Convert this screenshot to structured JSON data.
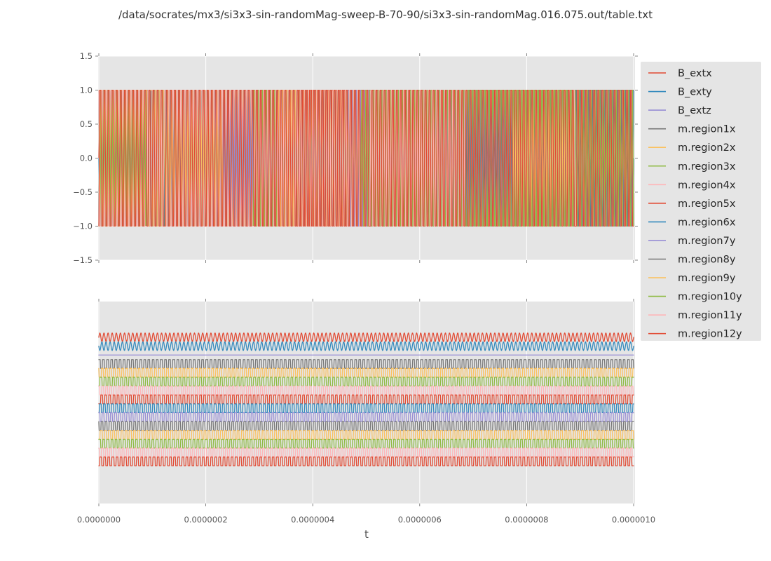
{
  "figure": {
    "background_color": "#ffffff",
    "axes_background_color": "#e5e5e5",
    "grid_color": "#ffffff",
    "tick_label_color": "#555555",
    "title_color": "#333333",
    "legend_text_color": "#262626",
    "legend_background_color": "#e5e5e5"
  },
  "chart_data": {
    "type": "line",
    "title": "/data/socrates/mx3/si3x3-sin-randomMag-sweep-B-70-90/si3x3-sin-randomMag.016.075.out/table.txt",
    "xlabel": "t",
    "xlim": [
      0,
      1e-06
    ],
    "x_tick_values": [
      0,
      2e-07,
      4e-07,
      6e-07,
      8e-07,
      1e-06
    ],
    "x_tick_labels": [
      "0.0000000",
      "0.0000002",
      "0.0000004",
      "0.0000006",
      "0.0000008",
      "0.0000010"
    ],
    "subplots": [
      {
        "name": "overlay",
        "ylim": [
          -1.5,
          1.5
        ],
        "y_tick_values": [
          1.5,
          1.0,
          0.5,
          0.0,
          -0.5,
          -1.0,
          -1.5
        ],
        "y_tick_labels": [
          "1.5",
          "1.0",
          "0.5",
          "0.0",
          "−0.5",
          "−1.0",
          "−1.5"
        ],
        "grid": "x+y"
      },
      {
        "name": "stacked",
        "y_tick_values": [],
        "y_tick_labels": [],
        "grid": "x"
      }
    ],
    "series": [
      {
        "name": "B_extx",
        "color": "#E24A33",
        "waveform": "sine",
        "amplitude": 1.0,
        "cycles": 130.0,
        "phase": 0.0
      },
      {
        "name": "B_exty",
        "color": "#348ABD",
        "waveform": "sine",
        "amplitude": 1.0,
        "cycles": 130.5,
        "phase": 0.5
      },
      {
        "name": "B_extz",
        "color": "#988ED5",
        "waveform": "flat",
        "amplitude": 0.0,
        "cycles": 0.0,
        "phase": 0.0
      },
      {
        "name": "m.region1x",
        "color": "#777777",
        "waveform": "square",
        "amplitude": 1.0,
        "cycles": 129.4,
        "phase": 0.13
      },
      {
        "name": "m.region2x",
        "color": "#FBC15E",
        "waveform": "square",
        "amplitude": 1.0,
        "cycles": 130.8,
        "phase": 0.42
      },
      {
        "name": "m.region3x",
        "color": "#8EBA42",
        "waveform": "square",
        "amplitude": 1.0,
        "cycles": 128.7,
        "phase": 0.77
      },
      {
        "name": "m.region4x",
        "color": "#FFB5B8",
        "waveform": "square",
        "amplitude": 1.0,
        "cycles": 131.3,
        "phase": 0.31
      },
      {
        "name": "m.region5x",
        "color": "#E24A33",
        "waveform": "square",
        "amplitude": 1.0,
        "cycles": 129.8,
        "phase": 0.58
      },
      {
        "name": "m.region6x",
        "color": "#348ABD",
        "waveform": "square",
        "amplitude": 1.0,
        "cycles": 130.3,
        "phase": 0.91
      },
      {
        "name": "m.region7y",
        "color": "#988ED5",
        "waveform": "square",
        "amplitude": 1.0,
        "cycles": 129.2,
        "phase": 0.22
      },
      {
        "name": "m.region8y",
        "color": "#777777",
        "waveform": "square",
        "amplitude": 1.0,
        "cycles": 131.0,
        "phase": 0.47
      },
      {
        "name": "m.region9y",
        "color": "#FBC15E",
        "waveform": "square",
        "amplitude": 1.0,
        "cycles": 128.9,
        "phase": 0.68
      },
      {
        "name": "m.region10y",
        "color": "#8EBA42",
        "waveform": "square",
        "amplitude": 1.0,
        "cycles": 130.6,
        "phase": 0.05
      },
      {
        "name": "m.region11y",
        "color": "#FFB5B8",
        "waveform": "square",
        "amplitude": 1.0,
        "cycles": 129.5,
        "phase": 0.36
      },
      {
        "name": "m.region12y",
        "color": "#E24A33",
        "waveform": "square",
        "amplitude": 1.0,
        "cycles": 130.1,
        "phase": 0.83
      }
    ],
    "legend": {
      "position": "right"
    }
  }
}
